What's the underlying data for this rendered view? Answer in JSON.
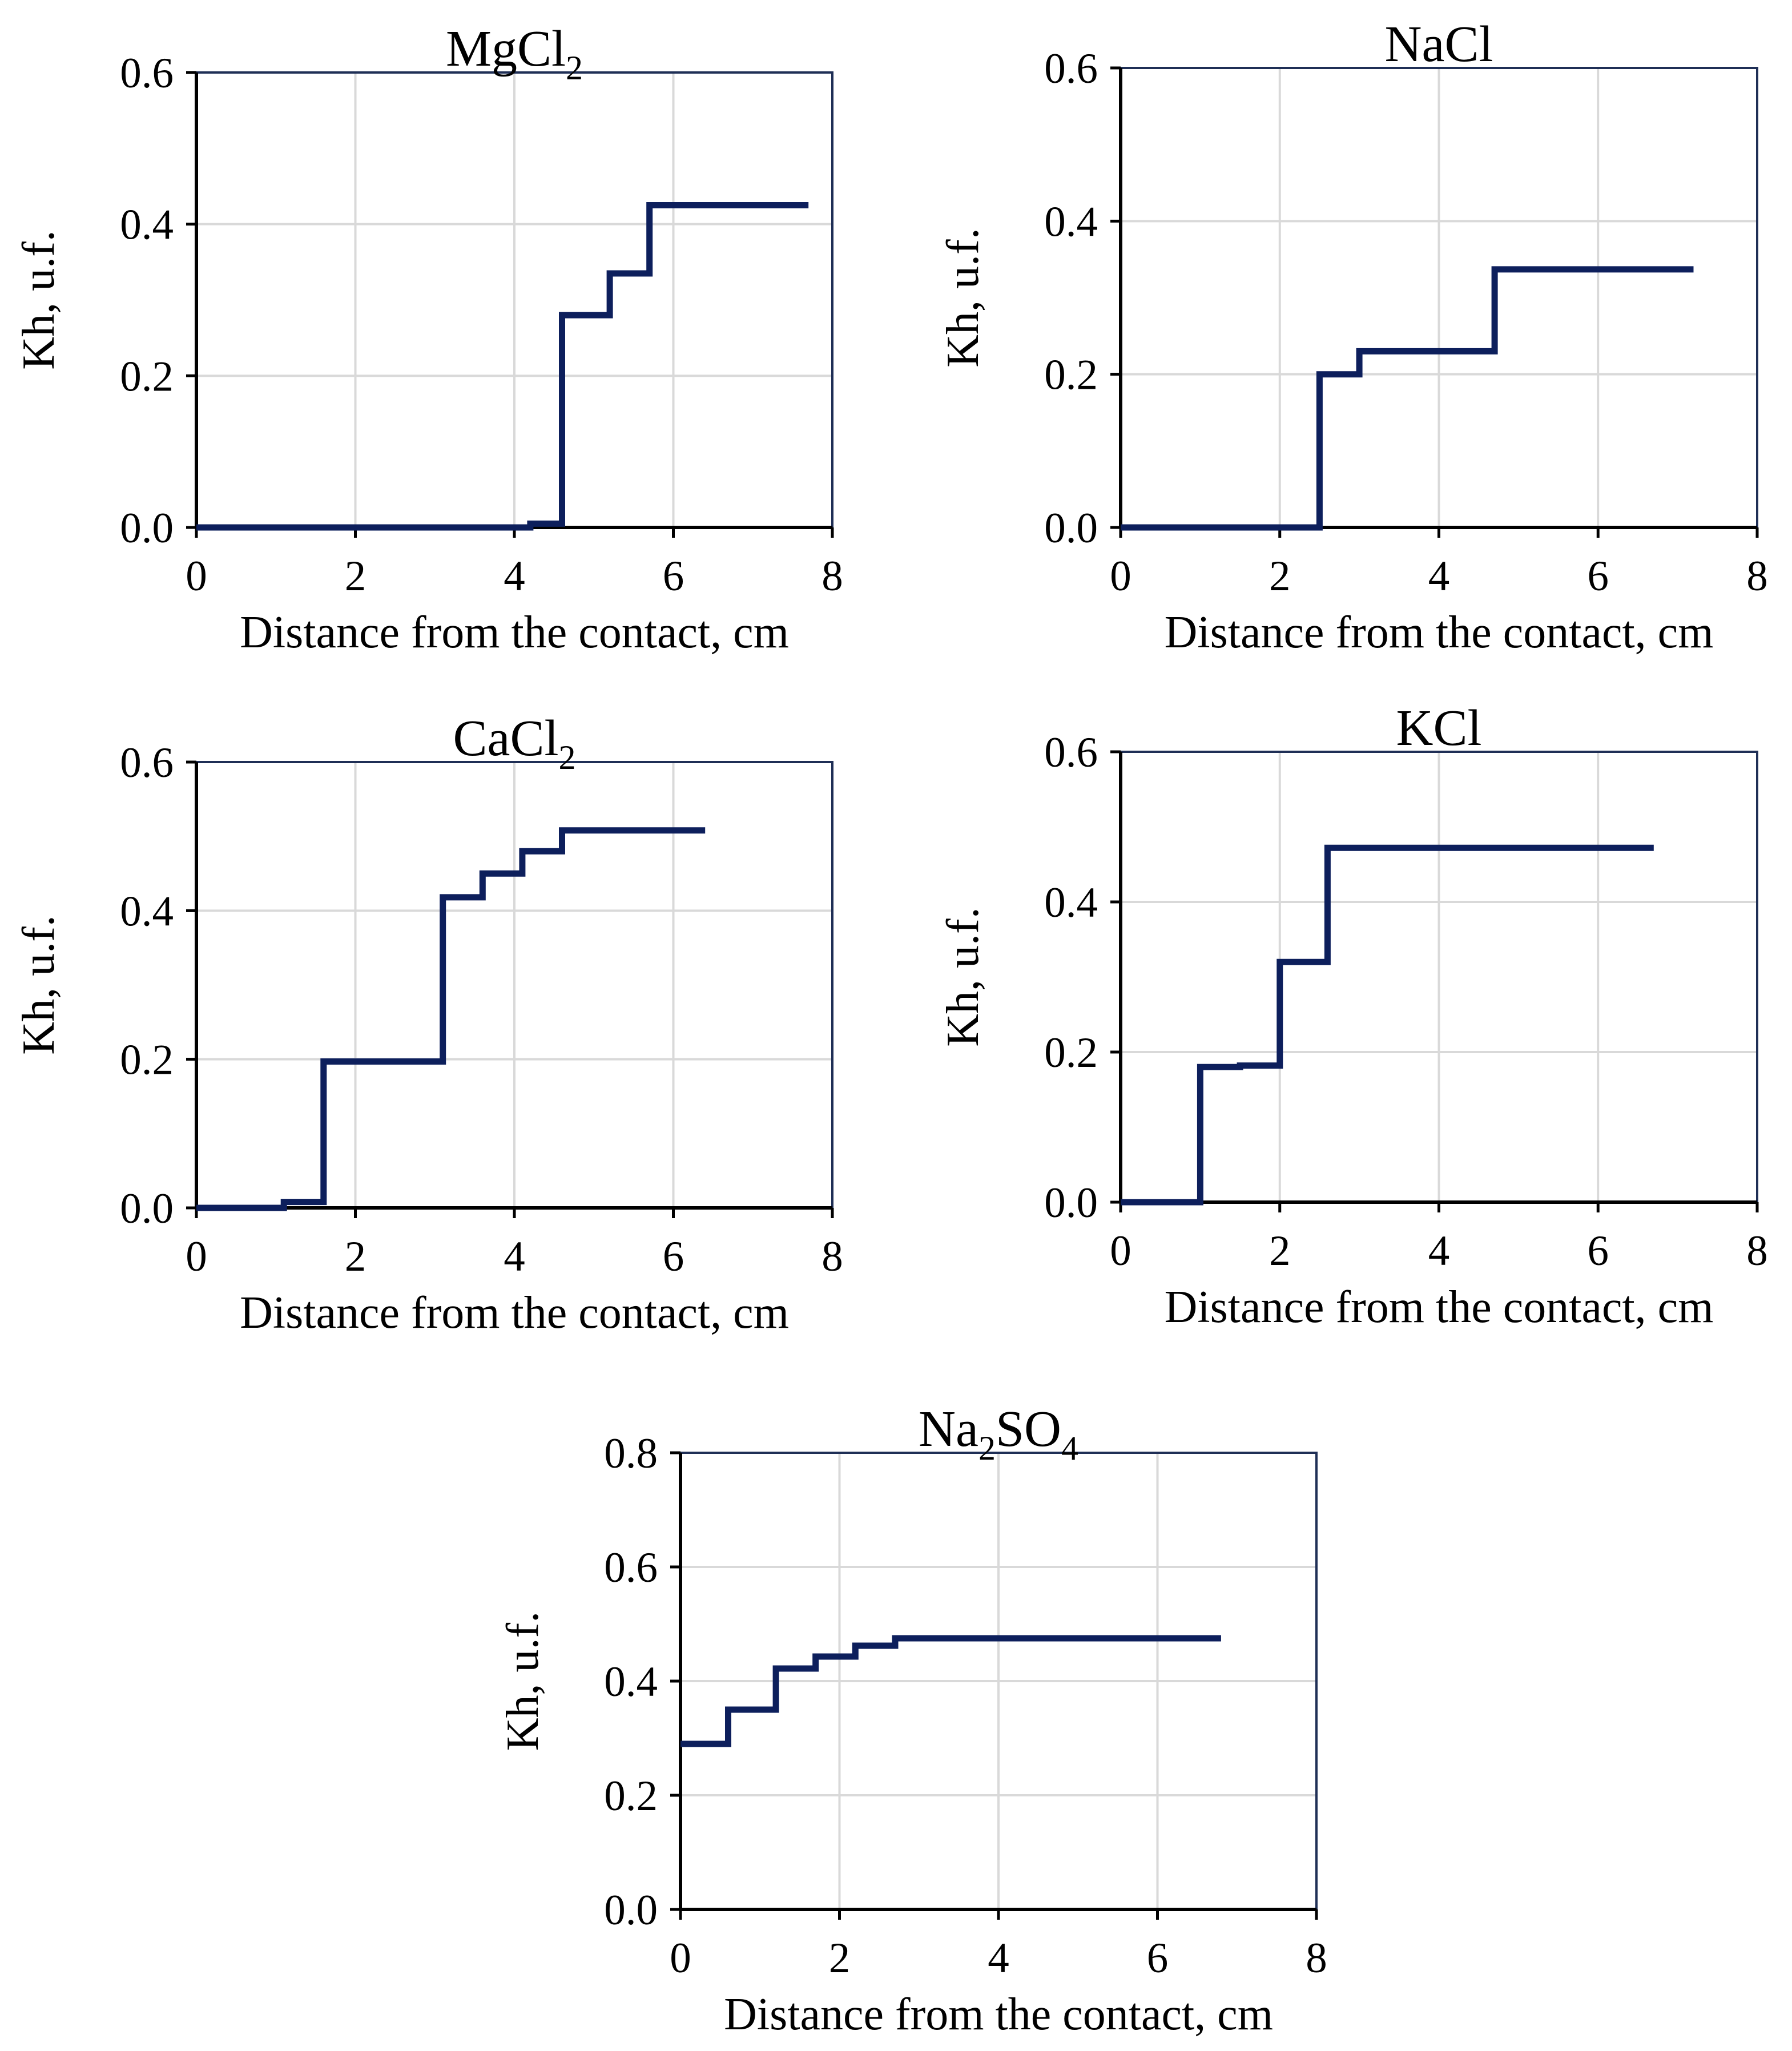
{
  "chart_data": [
    {
      "type": "line",
      "title": "MgCl",
      "title_subscript": "2",
      "xlabel": "Distance  from the contact, cm",
      "ylabel": "Kh, u.f.",
      "xlim": [
        0,
        8
      ],
      "ylim": [
        0,
        0.6
      ],
      "xticks": [
        "0",
        "2",
        "4",
        "6",
        "8"
      ],
      "yticks": [
        "0.0",
        "0.2",
        "0.4",
        "0.6"
      ],
      "grid": true,
      "color": "#0d1f5c",
      "x": [
        0,
        4.2,
        4.2,
        4.6,
        4.6,
        5.2,
        5.2,
        5.7,
        5.7,
        7.7
      ],
      "y": [
        0,
        0,
        0.005,
        0.005,
        0.28,
        0.28,
        0.335,
        0.335,
        0.425,
        0.425
      ]
    },
    {
      "type": "line",
      "title": "NaCl",
      "title_subscript": "",
      "xlabel": "Distance  from the contact, cm",
      "ylabel": "Kh, u.f.",
      "xlim": [
        0,
        8
      ],
      "ylim": [
        0,
        0.6
      ],
      "xticks": [
        "0",
        "2",
        "4",
        "6",
        "8"
      ],
      "yticks": [
        "0.0",
        "0.2",
        "0.4",
        "0.6"
      ],
      "grid": true,
      "color": "#0d1f5c",
      "x": [
        0,
        2.5,
        2.5,
        3.0,
        3.0,
        4.7,
        4.7,
        7.2
      ],
      "y": [
        0,
        0,
        0.2,
        0.2,
        0.23,
        0.23,
        0.337,
        0.337
      ]
    },
    {
      "type": "line",
      "title": "CaCl",
      "title_subscript": "2",
      "xlabel": "Distance  from the contact, cm",
      "ylabel": "Kh, u.f.",
      "xlim": [
        0,
        8
      ],
      "ylim": [
        0,
        0.6
      ],
      "xticks": [
        "0",
        "2",
        "4",
        "6",
        "8"
      ],
      "yticks": [
        "0.0",
        "0.2",
        "0.4",
        "0.6"
      ],
      "grid": true,
      "color": "#0d1f5c",
      "x": [
        0,
        1.1,
        1.1,
        1.6,
        1.6,
        3.1,
        3.1,
        3.6,
        3.6,
        4.1,
        4.1,
        4.6,
        4.6,
        6.4
      ],
      "y": [
        0,
        0,
        0.008,
        0.008,
        0.197,
        0.197,
        0.418,
        0.418,
        0.45,
        0.45,
        0.48,
        0.48,
        0.508,
        0.508
      ]
    },
    {
      "type": "line",
      "title": "KCl",
      "title_subscript": "",
      "xlabel": "Distance  from the contact, cm",
      "ylabel": "Kh, u.f.",
      "xlim": [
        0,
        8
      ],
      "ylim": [
        0,
        0.6
      ],
      "xticks": [
        "0",
        "2",
        "4",
        "6",
        "8"
      ],
      "yticks": [
        "0.0",
        "0.2",
        "0.4",
        "0.6"
      ],
      "grid": true,
      "color": "#0d1f5c",
      "x": [
        0,
        1.0,
        1.0,
        1.5,
        1.5,
        2.0,
        2.0,
        2.6,
        2.6,
        6.7
      ],
      "y": [
        0,
        0,
        0.18,
        0.18,
        0.182,
        0.182,
        0.32,
        0.32,
        0.472,
        0.472
      ]
    },
    {
      "type": "line",
      "title": "Na",
      "title_subscript": "2",
      "title_tail": "SO",
      "title_subscript2": "4",
      "xlabel": "Distance  from the contact, cm",
      "ylabel": "Kh, u.f.",
      "xlim": [
        0,
        8
      ],
      "ylim": [
        0,
        0.8
      ],
      "xticks": [
        "0",
        "2",
        "4",
        "6",
        "8"
      ],
      "yticks": [
        "0.0",
        "0.2",
        "0.4",
        "0.6",
        "0.8"
      ],
      "grid": true,
      "color": "#0d1f5c",
      "x": [
        0,
        0.6,
        0.6,
        1.2,
        1.2,
        1.7,
        1.7,
        2.2,
        2.2,
        2.7,
        2.7,
        6.8
      ],
      "y": [
        0.29,
        0.29,
        0.35,
        0.35,
        0.422,
        0.422,
        0.443,
        0.443,
        0.462,
        0.462,
        0.475,
        0.475
      ]
    }
  ]
}
